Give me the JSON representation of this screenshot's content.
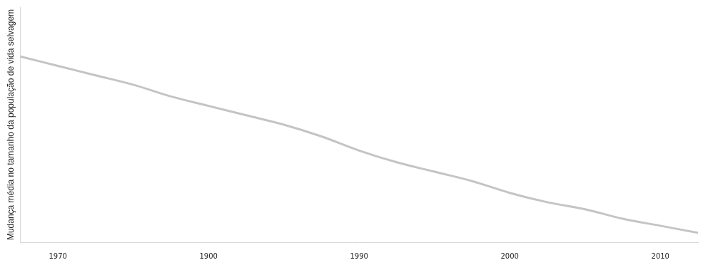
{
  "chart_data": {
    "type": "line",
    "y_label": "Mudança média no tamanho da população de vida selvagem",
    "categories": [
      null,
      "1970",
      null,
      null,
      null,
      "1900",
      null,
      null,
      null,
      "1990",
      null,
      null,
      null,
      "2000",
      null,
      null,
      null,
      "2010",
      null
    ],
    "values": [
      79,
      75,
      71,
      67,
      62,
      58,
      54,
      50,
      45,
      39,
      34,
      30,
      26,
      21,
      17,
      14,
      10,
      7,
      4
    ],
    "color": "#c4c4c4",
    "ylim": [
      0,
      100
    ],
    "grid": false,
    "tick_labels": "x"
  }
}
